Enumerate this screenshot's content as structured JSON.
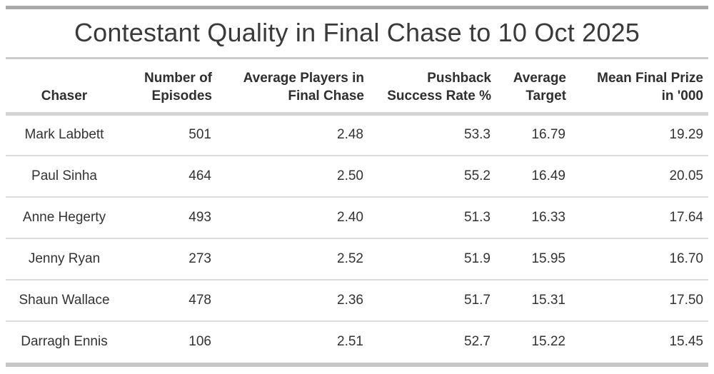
{
  "title": "Contestant Quality in Final Chase to 10 Oct 2025",
  "table": {
    "columns": [
      {
        "id": "chaser",
        "lines": [
          "Chaser"
        ]
      },
      {
        "id": "episodes",
        "lines": [
          "Number of",
          "Episodes"
        ]
      },
      {
        "id": "avg_players",
        "lines": [
          "Average Players in",
          "Final Chase"
        ]
      },
      {
        "id": "pushback_rate",
        "lines": [
          "Pushback",
          "Success Rate %"
        ]
      },
      {
        "id": "avg_target",
        "lines": [
          "Average",
          "Target"
        ]
      },
      {
        "id": "mean_prize",
        "lines": [
          "Mean Final Prize",
          "in '000"
        ]
      }
    ],
    "rows": [
      [
        "Mark Labbett",
        "501",
        "2.48",
        "53.3",
        "16.79",
        "19.29"
      ],
      [
        "Paul Sinha",
        "464",
        "2.50",
        "55.2",
        "16.49",
        "20.05"
      ],
      [
        "Anne Hegerty",
        "493",
        "2.40",
        "51.3",
        "16.33",
        "17.64"
      ],
      [
        "Jenny Ryan",
        "273",
        "2.52",
        "51.9",
        "15.95",
        "16.70"
      ],
      [
        "Shaun Wallace",
        "478",
        "2.36",
        "51.7",
        "15.31",
        "17.50"
      ],
      [
        "Darragh Ennis",
        "106",
        "2.51",
        "52.7",
        "15.22",
        "15.45"
      ]
    ]
  },
  "colors": {
    "top_bar": "#a9a9a9",
    "title_divider": "#cbcbcb",
    "header_divider": "#d4d4d4",
    "row_divider": "#dbdbdb",
    "bottom_bar": "#c7c7c7",
    "text": "#333333"
  },
  "chart_data": {
    "type": "table",
    "title": "Contestant Quality in Final Chase to 10 Oct 2025",
    "columns": [
      "Chaser",
      "Number of Episodes",
      "Average Players in Final Chase",
      "Pushback Success Rate %",
      "Average Target",
      "Mean Final Prize in '000"
    ],
    "rows": [
      [
        "Mark Labbett",
        501,
        2.48,
        53.3,
        16.79,
        19.29
      ],
      [
        "Paul Sinha",
        464,
        2.5,
        55.2,
        16.49,
        20.05
      ],
      [
        "Anne Hegerty",
        493,
        2.4,
        51.3,
        16.33,
        17.64
      ],
      [
        "Jenny Ryan",
        273,
        2.52,
        51.9,
        15.95,
        16.7
      ],
      [
        "Shaun Wallace",
        478,
        2.36,
        51.7,
        15.31,
        17.5
      ],
      [
        "Darragh Ennis",
        106,
        2.51,
        52.7,
        15.22,
        15.45
      ]
    ],
    "layout": {
      "chaser_column_align": "center",
      "numeric_columns_align": "right",
      "header_rows": 1,
      "gridlines": "horizontal"
    }
  }
}
